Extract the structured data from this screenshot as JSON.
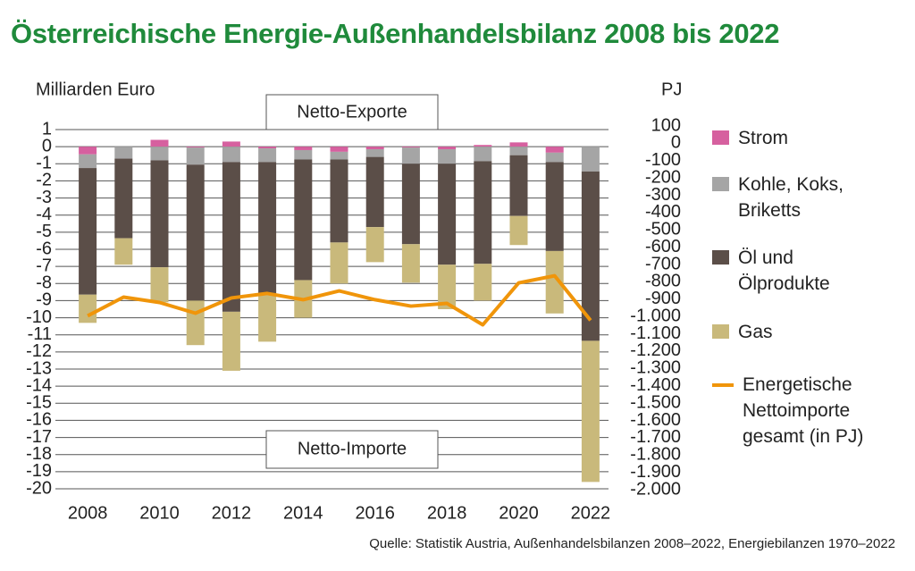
{
  "chart_data": {
    "type": "bar",
    "stacked": true,
    "title": "Österreichische Energie-Außenhandelsbilanz 2008 bis 2022",
    "ylabel": "Milliarden Euro",
    "y2label": "PJ",
    "annotations": [
      "Netto-Exporte",
      "Netto-Importe"
    ],
    "source": "Quelle: Statistik Austria, Außenhandelsbilanzen 2008–2022, Energiebilanzen 1970–2022",
    "categories": [
      "2008",
      null,
      "2010",
      null,
      "2012",
      null,
      "2014",
      null,
      "2016",
      null,
      "2018",
      null,
      "2020",
      null,
      "2022"
    ],
    "ylim": [
      -20,
      1
    ],
    "yticks": [
      1,
      0,
      -1,
      -2,
      -3,
      -4,
      -5,
      -6,
      -7,
      -8,
      -9,
      -10,
      -11,
      -12,
      -13,
      -14,
      -15,
      -16,
      -17,
      -18,
      -19,
      -20
    ],
    "y2lim": [
      -2000,
      100
    ],
    "y2ticks": [
      100,
      0,
      -100,
      -200,
      -300,
      -400,
      -500,
      -600,
      -700,
      -800,
      -900,
      {
        "value": -1000,
        "label": "-1.000"
      },
      {
        "value": -1100,
        "label": "-1.100"
      },
      {
        "value": -1200,
        "label": "-1.200"
      },
      {
        "value": -1300,
        "label": "-1.300"
      },
      {
        "value": -1400,
        "label": "-1.400"
      },
      {
        "value": -1500,
        "label": "-1.500"
      },
      {
        "value": -1600,
        "label": "-1.600"
      },
      {
        "value": -1700,
        "label": "-1.700"
      },
      {
        "value": -1800,
        "label": "-1.800"
      },
      {
        "value": -1900,
        "label": "-1.900"
      },
      {
        "value": -2000,
        "label": "-2.000"
      }
    ],
    "grid": true,
    "legend": "right",
    "series": [
      {
        "name": "Strom",
        "color": "#d6609f",
        "values": [
          -0.45,
          0,
          0.4,
          -0.05,
          0.3,
          -0.1,
          -0.2,
          -0.3,
          -0.15,
          -0.05,
          -0.15,
          0.1,
          0.25,
          -0.35,
          0
        ]
      },
      {
        "name": "Kohle, Koks, Briketts",
        "color": "#a5a5a5",
        "values": [
          -0.8,
          -0.7,
          -0.8,
          -1.0,
          -0.9,
          -0.8,
          -0.55,
          -0.45,
          -0.45,
          -0.95,
          -0.85,
          -0.85,
          -0.5,
          -0.55,
          -1.45
        ]
      },
      {
        "name": "Öl und Ölprodukte",
        "color": "#5b4e48",
        "values": [
          -7.4,
          -4.65,
          -6.25,
          -7.95,
          -8.75,
          -7.8,
          -7.05,
          -4.85,
          -4.1,
          -4.7,
          -5.9,
          -6.0,
          -3.55,
          -5.2,
          -9.9
        ]
      },
      {
        "name": "Gas",
        "color": "#c9b97b",
        "values": [
          -1.65,
          -1.55,
          -2.05,
          -2.6,
          -3.45,
          -2.7,
          -2.2,
          -2.4,
          -2.05,
          -2.25,
          -2.6,
          -2.15,
          -1.7,
          -3.65,
          -8.25
        ]
      },
      {
        "name": "Energetische Nettoimporte gesamt (in PJ)",
        "type": "line",
        "axis": "y2",
        "color": "#f0950a",
        "values": [
          -996,
          -888,
          -919,
          -981,
          -893,
          -867,
          -903,
          -852,
          -903,
          -940,
          -924,
          -1048,
          -806,
          -765,
          -1022
        ]
      }
    ]
  }
}
